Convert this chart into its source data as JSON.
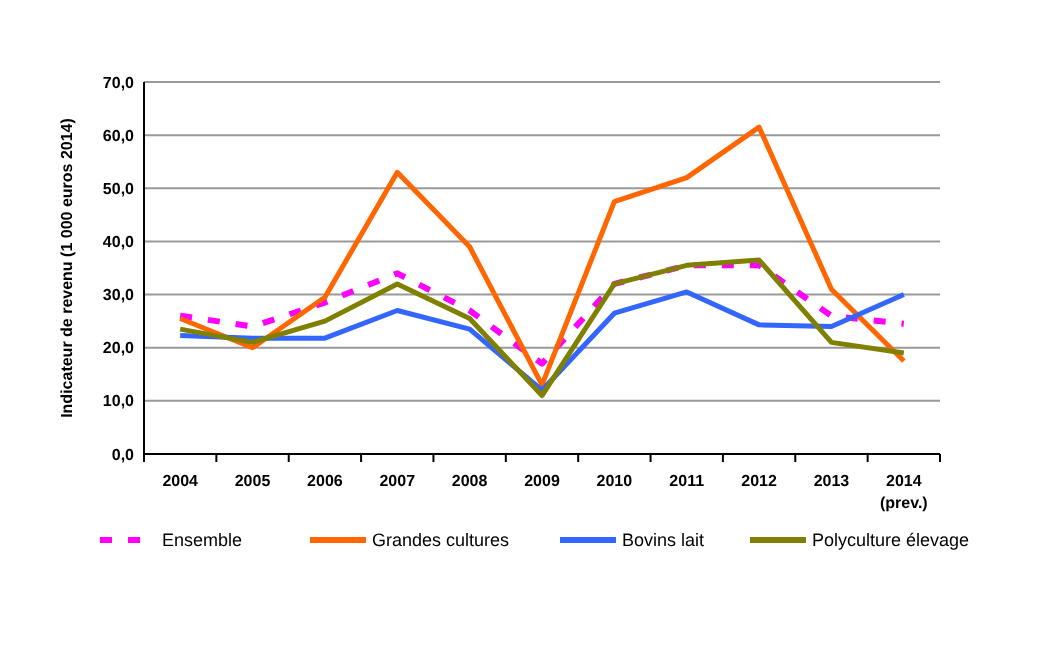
{
  "chart_data": {
    "type": "line",
    "ylabel": "Indicateur de revenu (1 000 euros 2014)",
    "categories": [
      "2004",
      "2005",
      "2006",
      "2007",
      "2008",
      "2009",
      "2010",
      "2011",
      "2012",
      "2013",
      "2014\n(prev.)"
    ],
    "ylim": [
      0,
      70
    ],
    "yticks": [
      {
        "value": 0,
        "label": "0,0"
      },
      {
        "value": 10,
        "label": "10,0"
      },
      {
        "value": 20,
        "label": "20,0"
      },
      {
        "value": 30,
        "label": "30,0"
      },
      {
        "value": 40,
        "label": "40,0"
      },
      {
        "value": 50,
        "label": "50,0"
      },
      {
        "value": 60,
        "label": "60,0"
      },
      {
        "value": 70,
        "label": "70,0"
      }
    ],
    "grid": "y",
    "legend": "bottom",
    "series": [
      {
        "name": "Ensemble",
        "color": "#ff00ff",
        "line_style": "dashed",
        "values": [
          26,
          24,
          28.5,
          34,
          27,
          17,
          32,
          35.5,
          35.5,
          26,
          24.5
        ]
      },
      {
        "name": "Grandes cultures",
        "color": "#ff6600",
        "values": [
          25.5,
          20,
          29.5,
          53,
          39,
          13,
          47.5,
          52,
          61.5,
          31,
          17.5
        ]
      },
      {
        "name": "Bovins lait",
        "color": "#3366ff",
        "values": [
          22.3,
          21.8,
          21.8,
          27,
          23.5,
          12,
          26.5,
          30.5,
          24.3,
          24,
          30
        ]
      },
      {
        "name": "Polyculture élevage",
        "color": "#808000",
        "values": [
          23.5,
          21,
          25,
          32,
          25.5,
          11,
          32,
          35.5,
          36.5,
          21,
          19
        ]
      }
    ]
  }
}
